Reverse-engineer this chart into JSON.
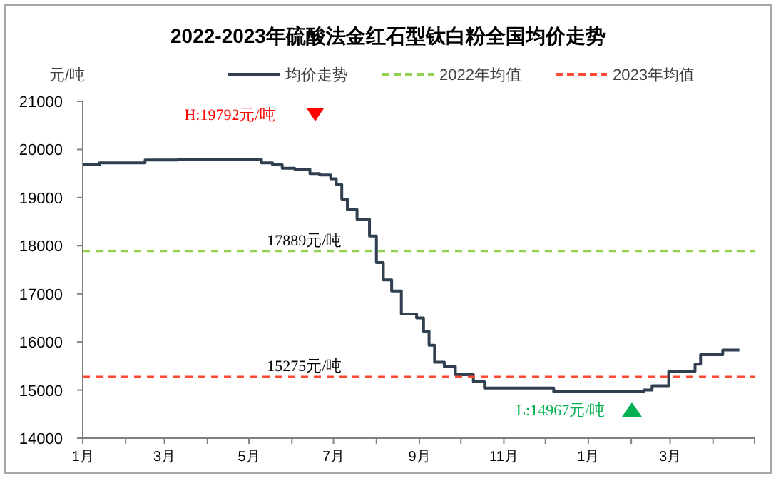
{
  "chart_data": {
    "type": "step",
    "title": "2022-2023年硫酸法金红石型钛白粉全国均价走势",
    "ylabel": "元/吨",
    "xlim": [
      "2022-01-01",
      "2023-05-01"
    ],
    "xticks": [
      {
        "value": "2022-01-01",
        "label": "1月"
      },
      {
        "value": "2022-02-01",
        "label": null
      },
      {
        "value": "2022-03-01",
        "label": "3月"
      },
      {
        "value": "2022-04-01",
        "label": null
      },
      {
        "value": "2022-05-01",
        "label": "5月"
      },
      {
        "value": "2022-06-01",
        "label": null
      },
      {
        "value": "2022-07-01",
        "label": "7月"
      },
      {
        "value": "2022-08-01",
        "label": null
      },
      {
        "value": "2022-09-01",
        "label": "9月"
      },
      {
        "value": "2022-10-01",
        "label": null
      },
      {
        "value": "2022-11-01",
        "label": "11月"
      },
      {
        "value": "2022-12-01",
        "label": null
      },
      {
        "value": "2023-01-01",
        "label": "1月"
      },
      {
        "value": "2023-02-01",
        "label": null
      },
      {
        "value": "2023-03-01",
        "label": "3月"
      },
      {
        "value": "2023-04-01",
        "label": null
      },
      {
        "value": "2023-05-01",
        "label": null
      }
    ],
    "ylim": [
      14000,
      21000
    ],
    "yticks": [
      14000,
      15000,
      16000,
      17000,
      18000,
      19000,
      20000,
      21000
    ],
    "legend": "top",
    "series": [
      {
        "name": "均价走势",
        "type": "step",
        "color": "#2f3f50",
        "line_style": "solid",
        "x": [
          "2022-01-01",
          "2022-01-13",
          "2022-02-15",
          "2022-03-11",
          "2022-05-10",
          "2022-05-18",
          "2022-05-25",
          "2022-06-03",
          "2022-06-14",
          "2022-06-21",
          "2022-06-29",
          "2022-07-03",
          "2022-07-07",
          "2022-07-11",
          "2022-07-18",
          "2022-07-27",
          "2022-08-01",
          "2022-08-06",
          "2022-08-12",
          "2022-08-19",
          "2022-08-30",
          "2022-09-04",
          "2022-09-08",
          "2022-09-12",
          "2022-09-19",
          "2022-09-27",
          "2022-10-10",
          "2022-10-18",
          "2022-12-07",
          "2023-02-10",
          "2023-02-16",
          "2023-02-28",
          "2023-03-19",
          "2023-03-23",
          "2023-04-08",
          "2023-04-20"
        ],
        "values": [
          19680,
          19720,
          19780,
          19792,
          19720,
          19680,
          19610,
          19590,
          19500,
          19470,
          19390,
          19270,
          18970,
          18750,
          18550,
          18200,
          17650,
          17290,
          17060,
          16580,
          16500,
          16220,
          15930,
          15580,
          15490,
          15320,
          15170,
          15040,
          14967,
          15000,
          15090,
          15390,
          15540,
          15735,
          15830,
          15830
        ]
      },
      {
        "name": "2022年均值",
        "type": "line",
        "color": "#92d050",
        "line_style": "dashed",
        "x": [
          "2022-01-01",
          "2023-05-01"
        ],
        "values": [
          17889,
          17889
        ]
      },
      {
        "name": "2023年均值",
        "type": "line",
        "color": "#ff4b33",
        "line_style": "dashed",
        "x": [
          "2022-01-01",
          "2023-05-01"
        ],
        "values": [
          15275,
          15275
        ]
      }
    ],
    "annotations": [
      {
        "text": "17889元/吨",
        "x": "2022-06-10",
        "y": 17889
      },
      {
        "text": "15275元/吨",
        "x": "2022-06-10",
        "y": 15275
      },
      "H:19792元/吨",
      "L:14967元/吨"
    ]
  }
}
